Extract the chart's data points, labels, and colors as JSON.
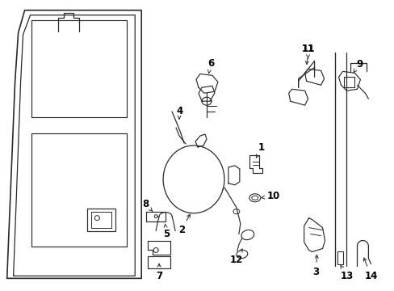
{
  "background_color": "#ffffff",
  "line_color": "#2a2a2a",
  "label_color": "#000000",
  "figsize": [
    4.89,
    3.6
  ],
  "dpi": 100,
  "font_size": 8.5,
  "lw": 1.0
}
